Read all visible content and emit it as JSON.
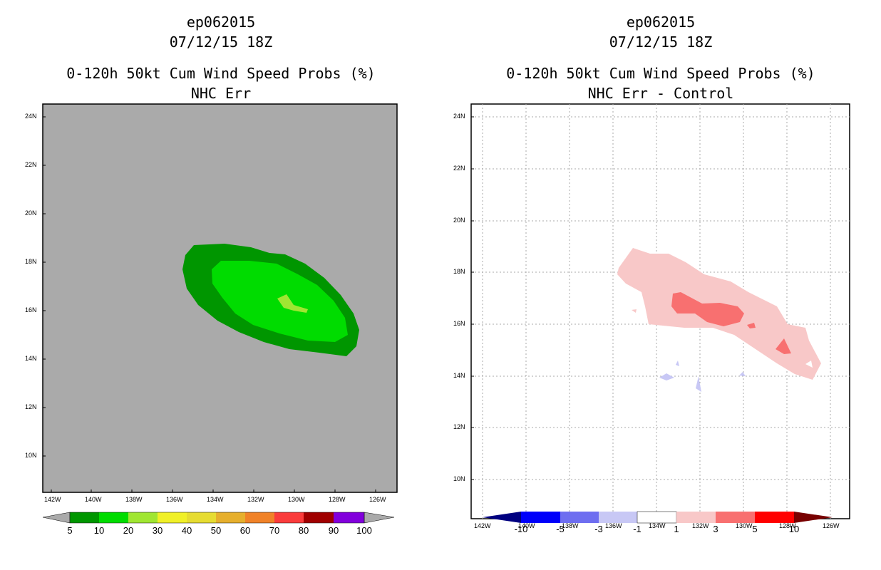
{
  "left_panel": {
    "storm_id": "ep062015",
    "datetime": "07/12/15 18Z",
    "product": "0-120h 50kt Cum Wind Speed Probs (%)",
    "subtitle": "NHC Err",
    "lat_labels": [
      "24N",
      "22N",
      "20N",
      "18N",
      "16N",
      "14N",
      "12N",
      "10N"
    ],
    "lon_labels": [
      "142W",
      "140W",
      "138W",
      "136W",
      "134W",
      "132W",
      "130W",
      "128W",
      "126W"
    ],
    "colorbar": {
      "labels": [
        "5",
        "10",
        "20",
        "30",
        "40",
        "50",
        "60",
        "70",
        "80",
        "90",
        "100"
      ],
      "colors": [
        "#009600",
        "#00dc00",
        "#a0e632",
        "#e6dc32",
        "#e6dc32",
        "#e6af2d",
        "#f08228",
        "#fa3c3c",
        "#a00000",
        "#8200dc"
      ],
      "end_color": "#aaaaaa"
    },
    "background_color": "#aaaaaa"
  },
  "right_panel": {
    "storm_id": "ep062015",
    "datetime": "07/12/15 18Z",
    "product": "0-120h 50kt Cum Wind Speed Probs (%)",
    "subtitle": "NHC Err - Control",
    "lat_labels": [
      "24N",
      "22N",
      "20N",
      "18N",
      "16N",
      "14N",
      "12N",
      "10N"
    ],
    "lon_labels": [
      "142W",
      "140W",
      "138W",
      "136W",
      "134W",
      "132W",
      "130W",
      "128W",
      "126W"
    ],
    "colorbar": {
      "labels": [
        "-10",
        "-5",
        "-3",
        "-1",
        "1",
        "3",
        "5",
        "10"
      ],
      "colors": [
        "#0000fa",
        "#6e6ef0",
        "#c8c8f5",
        "#ffffff",
        "#f8c8c8",
        "#f87070",
        "#ff0000"
      ],
      "low_end_color": "#000080",
      "high_end_color": "#780000"
    }
  }
}
